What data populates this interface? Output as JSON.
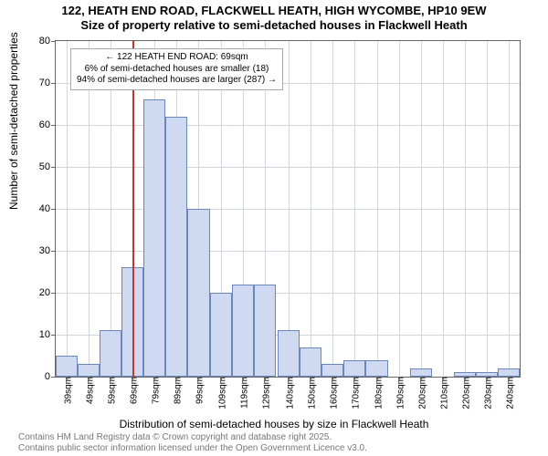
{
  "title": {
    "line1": "122, HEATH END ROAD, FLACKWELL HEATH, HIGH WYCOMBE, HP10 9EW",
    "line2": "Size of property relative to semi-detached houses in Flackwell Heath"
  },
  "chart": {
    "type": "histogram",
    "ylabel": "Number of semi-detached properties",
    "xlabel": "Distribution of semi-detached houses by size in Flackwell Heath",
    "ylim": [
      0,
      80
    ],
    "ytick_step": 10,
    "categories": [
      "39sqm",
      "49sqm",
      "59sqm",
      "69sqm",
      "79sqm",
      "89sqm",
      "99sqm",
      "109sqm",
      "119sqm",
      "129sqm",
      "140sqm",
      "150sqm",
      "160sqm",
      "170sqm",
      "180sqm",
      "190sqm",
      "200sqm",
      "210sqm",
      "220sqm",
      "230sqm",
      "240sqm"
    ],
    "bin_width": 10,
    "values": [
      5,
      3,
      11,
      26,
      66,
      62,
      40,
      20,
      22,
      22,
      11,
      7,
      3,
      4,
      4,
      0,
      2,
      0,
      1,
      1,
      2
    ],
    "bar_fill": "#cfdaf2",
    "bar_stroke": "#6b86b8",
    "grid_color": "#cfd6dd",
    "background_color": "#ffffff",
    "vline_value": 69,
    "vline_color": "#c0392b",
    "annotation": {
      "line1": "← 122 HEATH END ROAD: 69sqm",
      "line2": "6% of semi-detached houses are smaller (18)",
      "line3": "94% of semi-detached houses are larger (287) →"
    },
    "axis_range_x": [
      34,
      245
    ]
  },
  "footer": {
    "line1": "Contains HM Land Registry data © Crown copyright and database right 2025.",
    "line2": "Contains public sector information licensed under the Open Government Licence v3.0."
  }
}
